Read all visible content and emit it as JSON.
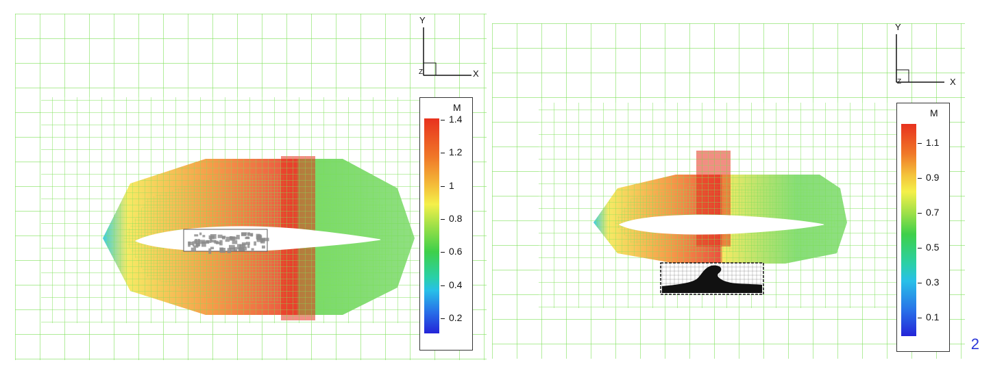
{
  "panels": [
    {
      "id": "left",
      "axes": {
        "y_label": "Y",
        "x_label": "X",
        "z_label": "Z"
      },
      "legend": {
        "title": "M",
        "ticks": [
          "1.4",
          "1.2",
          "1",
          "0.8",
          "0.6",
          "0.4",
          "0.2"
        ]
      },
      "inset": "grey-block"
    },
    {
      "id": "right",
      "axes": {
        "y_label": "Y",
        "x_label": "X",
        "z_label": "Z"
      },
      "legend": {
        "title": "M",
        "ticks": [
          "1.1",
          "0.9",
          "0.7",
          "0.5",
          "0.3",
          "0.1"
        ]
      },
      "inset": "wave-block"
    }
  ],
  "colors": {
    "grid": "#7fe15a",
    "red": "#e8321e",
    "orange": "#f58a2a",
    "yellow": "#f4e64a",
    "green": "#5fd24a",
    "cyan": "#28c8d8",
    "blue": "#2424d8"
  },
  "slide_number": "2"
}
